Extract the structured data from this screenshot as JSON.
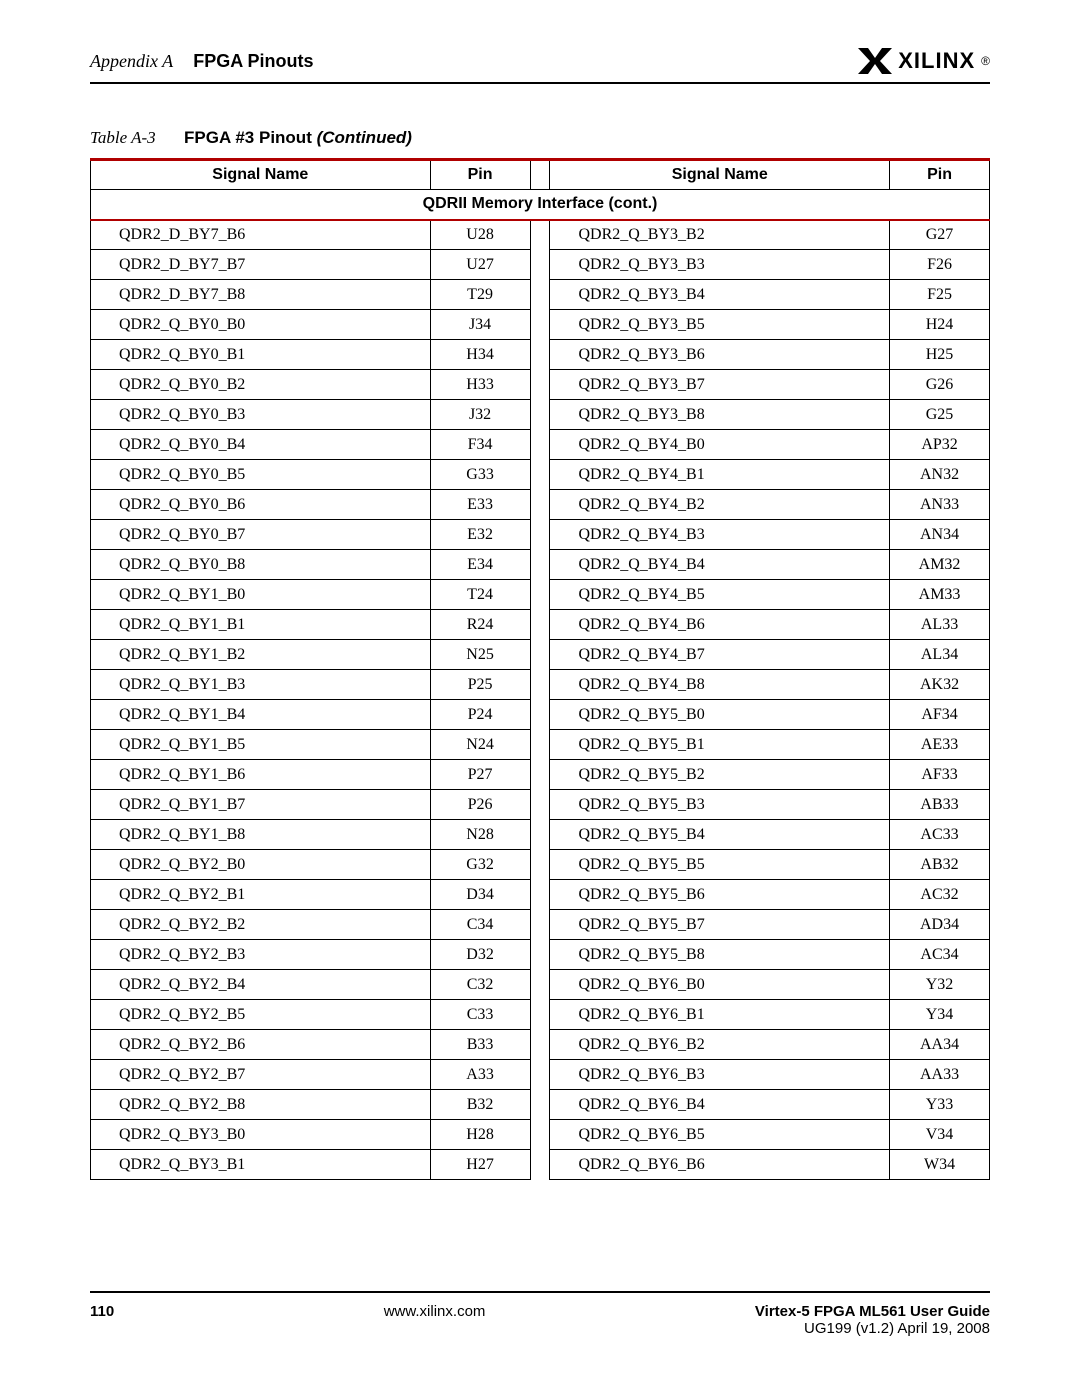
{
  "header": {
    "appendix_prefix": "Appendix A",
    "appendix_title": "FPGA Pinouts",
    "logo_text": "XILINX",
    "logo_reg": "®"
  },
  "caption": {
    "label": "Table  A-3",
    "title": "FPGA #3 Pinout",
    "continued": " (Continued)"
  },
  "table": {
    "headers": {
      "signal_name": "Signal Name",
      "pin": "Pin"
    },
    "section_title": "QDRII Memory Interface (cont.)",
    "rows": [
      {
        "l_sig": "QDR2_D_BY7_B6",
        "l_pin": "U28",
        "r_sig": "QDR2_Q_BY3_B2",
        "r_pin": "G27"
      },
      {
        "l_sig": "QDR2_D_BY7_B7",
        "l_pin": "U27",
        "r_sig": "QDR2_Q_BY3_B3",
        "r_pin": "F26"
      },
      {
        "l_sig": "QDR2_D_BY7_B8",
        "l_pin": "T29",
        "r_sig": "QDR2_Q_BY3_B4",
        "r_pin": "F25"
      },
      {
        "l_sig": "QDR2_Q_BY0_B0",
        "l_pin": "J34",
        "r_sig": "QDR2_Q_BY3_B5",
        "r_pin": "H24"
      },
      {
        "l_sig": "QDR2_Q_BY0_B1",
        "l_pin": "H34",
        "r_sig": "QDR2_Q_BY3_B6",
        "r_pin": "H25"
      },
      {
        "l_sig": "QDR2_Q_BY0_B2",
        "l_pin": "H33",
        "r_sig": "QDR2_Q_BY3_B7",
        "r_pin": "G26"
      },
      {
        "l_sig": "QDR2_Q_BY0_B3",
        "l_pin": "J32",
        "r_sig": "QDR2_Q_BY3_B8",
        "r_pin": "G25"
      },
      {
        "l_sig": "QDR2_Q_BY0_B4",
        "l_pin": "F34",
        "r_sig": "QDR2_Q_BY4_B0",
        "r_pin": "AP32"
      },
      {
        "l_sig": "QDR2_Q_BY0_B5",
        "l_pin": "G33",
        "r_sig": "QDR2_Q_BY4_B1",
        "r_pin": "AN32"
      },
      {
        "l_sig": "QDR2_Q_BY0_B6",
        "l_pin": "E33",
        "r_sig": "QDR2_Q_BY4_B2",
        "r_pin": "AN33"
      },
      {
        "l_sig": "QDR2_Q_BY0_B7",
        "l_pin": "E32",
        "r_sig": "QDR2_Q_BY4_B3",
        "r_pin": "AN34"
      },
      {
        "l_sig": "QDR2_Q_BY0_B8",
        "l_pin": "E34",
        "r_sig": "QDR2_Q_BY4_B4",
        "r_pin": "AM32"
      },
      {
        "l_sig": "QDR2_Q_BY1_B0",
        "l_pin": "T24",
        "r_sig": "QDR2_Q_BY4_B5",
        "r_pin": "AM33"
      },
      {
        "l_sig": "QDR2_Q_BY1_B1",
        "l_pin": "R24",
        "r_sig": "QDR2_Q_BY4_B6",
        "r_pin": "AL33"
      },
      {
        "l_sig": "QDR2_Q_BY1_B2",
        "l_pin": "N25",
        "r_sig": "QDR2_Q_BY4_B7",
        "r_pin": "AL34"
      },
      {
        "l_sig": "QDR2_Q_BY1_B3",
        "l_pin": "P25",
        "r_sig": "QDR2_Q_BY4_B8",
        "r_pin": "AK32"
      },
      {
        "l_sig": "QDR2_Q_BY1_B4",
        "l_pin": "P24",
        "r_sig": "QDR2_Q_BY5_B0",
        "r_pin": "AF34"
      },
      {
        "l_sig": "QDR2_Q_BY1_B5",
        "l_pin": "N24",
        "r_sig": "QDR2_Q_BY5_B1",
        "r_pin": "AE33"
      },
      {
        "l_sig": "QDR2_Q_BY1_B6",
        "l_pin": "P27",
        "r_sig": "QDR2_Q_BY5_B2",
        "r_pin": "AF33"
      },
      {
        "l_sig": "QDR2_Q_BY1_B7",
        "l_pin": "P26",
        "r_sig": "QDR2_Q_BY5_B3",
        "r_pin": "AB33"
      },
      {
        "l_sig": "QDR2_Q_BY1_B8",
        "l_pin": "N28",
        "r_sig": "QDR2_Q_BY5_B4",
        "r_pin": "AC33"
      },
      {
        "l_sig": "QDR2_Q_BY2_B0",
        "l_pin": "G32",
        "r_sig": "QDR2_Q_BY5_B5",
        "r_pin": "AB32"
      },
      {
        "l_sig": "QDR2_Q_BY2_B1",
        "l_pin": "D34",
        "r_sig": "QDR2_Q_BY5_B6",
        "r_pin": "AC32"
      },
      {
        "l_sig": "QDR2_Q_BY2_B2",
        "l_pin": "C34",
        "r_sig": "QDR2_Q_BY5_B7",
        "r_pin": "AD34"
      },
      {
        "l_sig": "QDR2_Q_BY2_B3",
        "l_pin": "D32",
        "r_sig": "QDR2_Q_BY5_B8",
        "r_pin": "AC34"
      },
      {
        "l_sig": "QDR2_Q_BY2_B4",
        "l_pin": "C32",
        "r_sig": "QDR2_Q_BY6_B0",
        "r_pin": "Y32"
      },
      {
        "l_sig": "QDR2_Q_BY2_B5",
        "l_pin": "C33",
        "r_sig": "QDR2_Q_BY6_B1",
        "r_pin": "Y34"
      },
      {
        "l_sig": "QDR2_Q_BY2_B6",
        "l_pin": "B33",
        "r_sig": "QDR2_Q_BY6_B2",
        "r_pin": "AA34"
      },
      {
        "l_sig": "QDR2_Q_BY2_B7",
        "l_pin": "A33",
        "r_sig": "QDR2_Q_BY6_B3",
        "r_pin": "AA33"
      },
      {
        "l_sig": "QDR2_Q_BY2_B8",
        "l_pin": "B32",
        "r_sig": "QDR2_Q_BY6_B4",
        "r_pin": "Y33"
      },
      {
        "l_sig": "QDR2_Q_BY3_B0",
        "l_pin": "H28",
        "r_sig": "QDR2_Q_BY6_B5",
        "r_pin": "V34"
      },
      {
        "l_sig": "QDR2_Q_BY3_B1",
        "l_pin": "H27",
        "r_sig": "QDR2_Q_BY6_B6",
        "r_pin": "W34"
      }
    ]
  },
  "footer": {
    "page_number": "110",
    "url": "www.xilinx.com",
    "guide_title": "Virtex-5 FPGA ML561 User Guide",
    "doc_id": "UG199 (v1.2) April 19, 2008"
  },
  "colors": {
    "rule_red": "#b00000",
    "text": "#000000",
    "background": "#ffffff"
  }
}
